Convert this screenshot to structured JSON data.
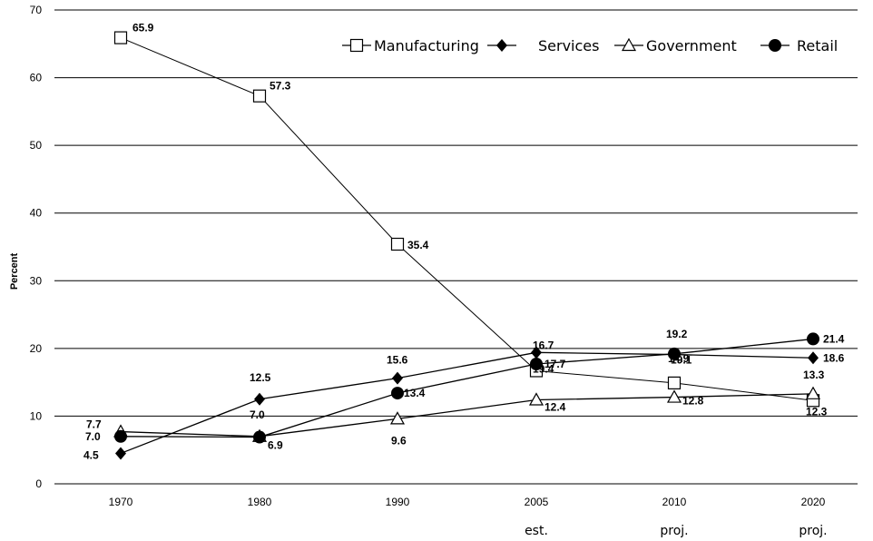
{
  "chart_data": {
    "type": "line",
    "categories": [
      "1970",
      "1980",
      "1990",
      "2005",
      "2010",
      "2020"
    ],
    "category_sublabels": [
      "",
      "",
      "",
      "est.",
      "proj.",
      "proj."
    ],
    "ylabel": "Percent",
    "ylim": [
      0,
      70
    ],
    "yticks": [
      0,
      10,
      20,
      30,
      40,
      50,
      60,
      70
    ],
    "grid": "horizontal",
    "legend_position": "top-right",
    "series": [
      {
        "name": "Manufacturing",
        "marker": "square-open",
        "values": [
          65.9,
          57.3,
          35.4,
          16.7,
          14.9,
          12.3
        ]
      },
      {
        "name": "Services",
        "marker": "diamond-filled",
        "values": [
          4.5,
          12.5,
          15.6,
          19.4,
          19.1,
          18.6
        ]
      },
      {
        "name": "Government",
        "marker": "triangle-open",
        "values": [
          7.7,
          7.0,
          9.6,
          12.4,
          12.8,
          13.3
        ]
      },
      {
        "name": "Retail",
        "marker": "circle-filled",
        "values": [
          7.0,
          6.9,
          13.4,
          17.7,
          19.2,
          21.4
        ]
      }
    ],
    "data_labels": [
      {
        "series": 0,
        "index": 0,
        "text": "65.9"
      },
      {
        "series": 0,
        "index": 1,
        "text": "57.3"
      },
      {
        "series": 0,
        "index": 2,
        "text": "35.4"
      },
      {
        "series": 0,
        "index": 3,
        "text": "16.7"
      },
      {
        "series": 0,
        "index": 4,
        "text": "14.9"
      },
      {
        "series": 0,
        "index": 5,
        "text": "12.3"
      },
      {
        "series": 1,
        "index": 0,
        "text": "4.5"
      },
      {
        "series": 1,
        "index": 1,
        "text": "12.5"
      },
      {
        "series": 1,
        "index": 2,
        "text": "15.6"
      },
      {
        "series": 1,
        "index": 3,
        "text": "19.4"
      },
      {
        "series": 1,
        "index": 4,
        "text": "19.1"
      },
      {
        "series": 1,
        "index": 5,
        "text": "18.6"
      },
      {
        "series": 2,
        "index": 0,
        "text": "7.7"
      },
      {
        "series": 2,
        "index": 1,
        "text": "7.0"
      },
      {
        "series": 2,
        "index": 2,
        "text": "9.6"
      },
      {
        "series": 2,
        "index": 3,
        "text": "12.4"
      },
      {
        "series": 2,
        "index": 4,
        "text": "12.8"
      },
      {
        "series": 2,
        "index": 5,
        "text": "13.3"
      },
      {
        "series": 3,
        "index": 0,
        "text": "7.0"
      },
      {
        "series": 3,
        "index": 1,
        "text": "6.9"
      },
      {
        "series": 3,
        "index": 2,
        "text": "13.4"
      },
      {
        "series": 3,
        "index": 3,
        "text": "17.7"
      },
      {
        "series": 3,
        "index": 4,
        "text": "19.2"
      },
      {
        "series": 3,
        "index": 5,
        "text": "21.4"
      }
    ],
    "colors": {
      "line": "#000000",
      "grid": "#000000",
      "background": "#ffffff"
    }
  }
}
